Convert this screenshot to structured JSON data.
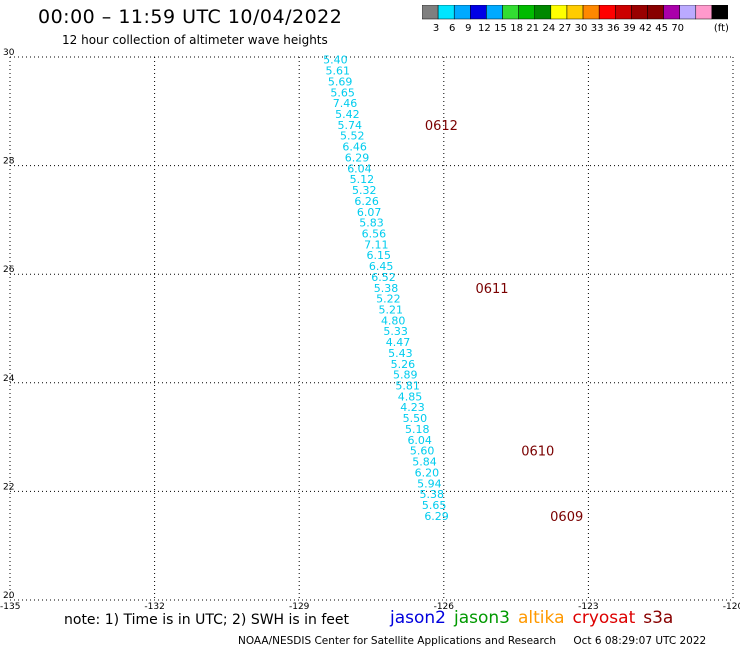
{
  "title": "00:00 – 11:59 UTC 10/04/2022",
  "subtitle": "12 hour collection of altimeter wave heights",
  "colorbar": {
    "colors": [
      "#7f7f7f",
      "#00e5ff",
      "#00aaff",
      "#0000e6",
      "#00aaff",
      "#33dd33",
      "#00bb00",
      "#008800",
      "#ffff00",
      "#ffcc00",
      "#ff8800",
      "#ff0000",
      "#cc0000",
      "#990000",
      "#880000",
      "#aa00aa",
      "#bbaaff",
      "#ff99cc",
      "#000000"
    ],
    "labels": [
      "3",
      "6",
      "9",
      "12",
      "15",
      "18",
      "21",
      "24",
      "27",
      "30",
      "33",
      "36",
      "39",
      "42",
      "45",
      "70",
      "(ft)"
    ]
  },
  "chart_data": {
    "type": "scatter",
    "xlim": [
      -135,
      -120
    ],
    "ylim": [
      20,
      30
    ],
    "x_ticks": [
      "-135",
      "-132",
      "-129",
      "-126",
      "-123",
      "-120"
    ],
    "y_ticks": [
      "20",
      "22",
      "24",
      "26",
      "28",
      "30"
    ],
    "grid": true,
    "points": [
      {
        "lon": -128.25,
        "lat": 29.95,
        "swh": "5.40"
      },
      {
        "lon": -128.2,
        "lat": 29.75,
        "swh": "5.61"
      },
      {
        "lon": -128.15,
        "lat": 29.55,
        "swh": "5.69"
      },
      {
        "lon": -128.1,
        "lat": 29.35,
        "swh": "5.65"
      },
      {
        "lon": -128.05,
        "lat": 29.15,
        "swh": "7.46"
      },
      {
        "lon": -128.0,
        "lat": 28.95,
        "swh": "5.42"
      },
      {
        "lon": -127.95,
        "lat": 28.75,
        "swh": "5.74"
      },
      {
        "lon": -127.9,
        "lat": 28.55,
        "swh": "5.52"
      },
      {
        "lon": -127.85,
        "lat": 28.35,
        "swh": "6.46"
      },
      {
        "lon": -127.8,
        "lat": 28.15,
        "swh": "6.29"
      },
      {
        "lon": -127.75,
        "lat": 27.95,
        "swh": "6.04"
      },
      {
        "lon": -127.7,
        "lat": 27.75,
        "swh": "5.12"
      },
      {
        "lon": -127.65,
        "lat": 27.55,
        "swh": "5.32"
      },
      {
        "lon": -127.6,
        "lat": 27.35,
        "swh": "6.26"
      },
      {
        "lon": -127.55,
        "lat": 27.15,
        "swh": "6.07"
      },
      {
        "lon": -127.5,
        "lat": 26.95,
        "swh": "5.83"
      },
      {
        "lon": -127.45,
        "lat": 26.75,
        "swh": "6.56"
      },
      {
        "lon": -127.4,
        "lat": 26.55,
        "swh": "7.11"
      },
      {
        "lon": -127.35,
        "lat": 26.35,
        "swh": "6.15"
      },
      {
        "lon": -127.3,
        "lat": 26.15,
        "swh": "6.45"
      },
      {
        "lon": -127.25,
        "lat": 25.95,
        "swh": "6.52"
      },
      {
        "lon": -127.2,
        "lat": 25.75,
        "swh": "5.38"
      },
      {
        "lon": -127.15,
        "lat": 25.55,
        "swh": "5.22"
      },
      {
        "lon": -127.1,
        "lat": 25.35,
        "swh": "5.21"
      },
      {
        "lon": -127.05,
        "lat": 25.15,
        "swh": "4.80"
      },
      {
        "lon": -127.0,
        "lat": 24.95,
        "swh": "5.33"
      },
      {
        "lon": -126.95,
        "lat": 24.75,
        "swh": "4.47"
      },
      {
        "lon": -126.9,
        "lat": 24.55,
        "swh": "5.43"
      },
      {
        "lon": -126.85,
        "lat": 24.35,
        "swh": "5.26"
      },
      {
        "lon": -126.8,
        "lat": 24.15,
        "swh": "5.89"
      },
      {
        "lon": -126.75,
        "lat": 23.95,
        "swh": "5.81"
      },
      {
        "lon": -126.7,
        "lat": 23.75,
        "swh": "4.85"
      },
      {
        "lon": -126.65,
        "lat": 23.55,
        "swh": "4.23"
      },
      {
        "lon": -126.6,
        "lat": 23.35,
        "swh": "5.50"
      },
      {
        "lon": -126.55,
        "lat": 23.15,
        "swh": "5.18"
      },
      {
        "lon": -126.5,
        "lat": 22.95,
        "swh": "6.04"
      },
      {
        "lon": -126.45,
        "lat": 22.75,
        "swh": "5.60"
      },
      {
        "lon": -126.4,
        "lat": 22.55,
        "swh": "5.84"
      },
      {
        "lon": -126.35,
        "lat": 22.35,
        "swh": "6.20"
      },
      {
        "lon": -126.3,
        "lat": 22.15,
        "swh": "5.94"
      },
      {
        "lon": -126.25,
        "lat": 21.95,
        "swh": "5.38"
      },
      {
        "lon": -126.2,
        "lat": 21.75,
        "swh": "5.65"
      },
      {
        "lon": -126.15,
        "lat": 21.55,
        "swh": "6.29"
      }
    ],
    "time_labels": [
      {
        "text": "0612",
        "lon": -126.05,
        "lat": 28.75
      },
      {
        "text": "0611",
        "lon": -125.0,
        "lat": 25.75
      },
      {
        "text": "0610",
        "lon": -124.05,
        "lat": 22.75
      },
      {
        "text": "0609",
        "lon": -123.45,
        "lat": 21.55
      }
    ],
    "point_color": "#00ccee",
    "time_color": "#7a0000"
  },
  "note": "note:  1) Time is in UTC;  2) SWH is in feet",
  "satellites": [
    {
      "name": "jason2",
      "color": "#0000dd"
    },
    {
      "name": "jason3",
      "color": "#009900"
    },
    {
      "name": "altika",
      "color": "#ff9900"
    },
    {
      "name": "cryosat",
      "color": "#dd0000"
    },
    {
      "name": "s3a",
      "color": "#880000"
    }
  ],
  "footer": {
    "credit": "NOAA/NESDIS Center for Satellite Applications and Research",
    "timestamp": "Oct  6 08:29:07 UTC 2022"
  }
}
